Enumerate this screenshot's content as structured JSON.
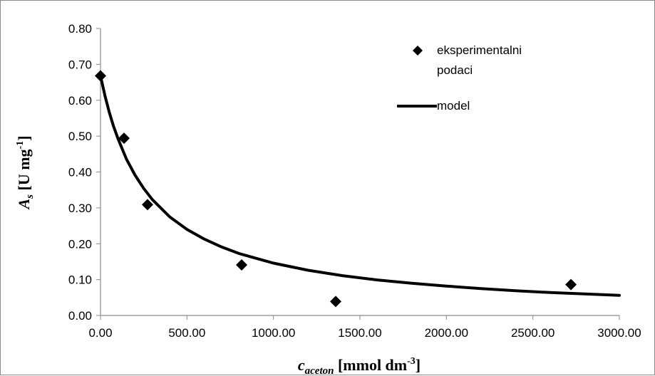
{
  "chart_data": {
    "type": "scatter",
    "x_ticks": [
      "0.00",
      "500.00",
      "1000.00",
      "1500.00",
      "2000.00",
      "2500.00",
      "3000.00"
    ],
    "y_ticks": [
      "0.00",
      "0.10",
      "0.20",
      "0.30",
      "0.40",
      "0.50",
      "0.60",
      "0.70",
      "0.80"
    ],
    "xlim": [
      0,
      3000
    ],
    "ylim": [
      0,
      0.8
    ],
    "xlabel": {
      "main": "c",
      "sub": "aceton",
      "rest": " [mmol dm",
      "sup": "-3",
      "close": "]"
    },
    "ylabel": {
      "main": "A",
      "sub": "s",
      "rest": " [U mg",
      "sup": "-1",
      "close": "]"
    },
    "grid": false,
    "legend_position": "top-right",
    "series": [
      {
        "name": "eksperimentalni podaci",
        "legend_lines": [
          "eksperimentalni",
          "podaci"
        ],
        "kind": "markers",
        "marker": "diamond",
        "color": "#000000",
        "x": [
          0,
          136,
          272,
          816,
          1360,
          2720
        ],
        "y": [
          0.668,
          0.494,
          0.309,
          0.141,
          0.039,
          0.086
        ]
      },
      {
        "name": "model",
        "legend_lines": [
          "model"
        ],
        "kind": "line",
        "color": "#000000",
        "x": [
          0,
          25,
          50,
          75,
          100,
          150,
          200,
          250,
          300,
          400,
          500,
          600,
          700,
          800,
          1000,
          1200,
          1400,
          1600,
          1800,
          2000,
          2200,
          2400,
          2600,
          2800,
          3000
        ],
        "y": [
          0.668,
          0.614,
          0.568,
          0.528,
          0.494,
          0.436,
          0.391,
          0.354,
          0.323,
          0.275,
          0.24,
          0.213,
          0.191,
          0.173,
          0.146,
          0.126,
          0.111,
          0.099,
          0.09,
          0.082,
          0.075,
          0.069,
          0.064,
          0.06,
          0.056
        ]
      }
    ]
  }
}
